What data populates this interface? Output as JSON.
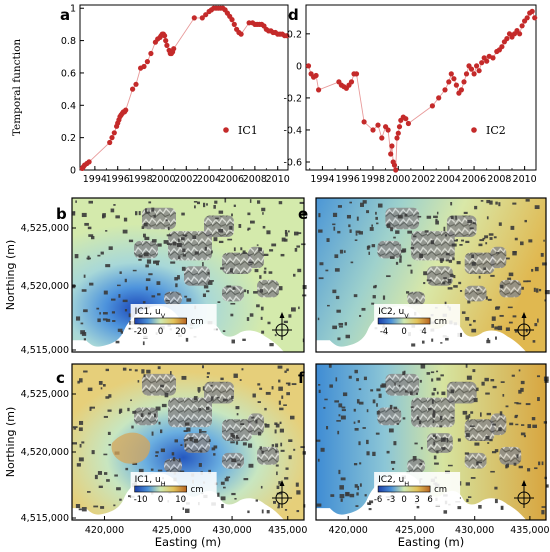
{
  "chart_data": [
    {
      "type": "scatter",
      "panel": "a",
      "ylabel": "Temporal function",
      "legend": {
        "label": "IC1",
        "placement": "bottom-right"
      },
      "xlim": [
        1992.7,
        2010.9
      ],
      "ylim": [
        0,
        1.02
      ],
      "xticks": [
        "1994",
        "1996",
        "1998",
        "2000",
        "2002",
        "2004",
        "2006",
        "2008",
        "2010"
      ],
      "yticks": [
        "0",
        "0.2",
        "0.4",
        "0.6",
        "0.8",
        "1"
      ],
      "series": [
        {
          "x": [
            1992.9,
            1993.0,
            1993.1,
            1993.3,
            1993.5,
            1995.3,
            1995.5,
            1995.7,
            1995.9,
            1996.0,
            1996.1,
            1996.2,
            1996.3,
            1996.4,
            1996.5,
            1996.6,
            1996.7,
            1997.3,
            1997.6,
            1998.0,
            1998.3,
            1998.6,
            1998.9,
            1999.3,
            1999.5,
            1999.7,
            1999.8,
            1999.9,
            2000.0,
            2000.1,
            2000.2,
            2000.3,
            2000.5,
            2000.6,
            2000.7,
            2000.8,
            2000.9,
            2002.7,
            2003.4,
            2003.7,
            2004.0,
            2004.2,
            2004.4,
            2004.6,
            2004.8,
            2005.0,
            2005.2,
            2005.4,
            2005.6,
            2005.8,
            2006.0,
            2006.2,
            2006.4,
            2006.6,
            2006.8,
            2007.5,
            2007.8,
            2008.0,
            2008.2,
            2008.4,
            2008.6,
            2008.8,
            2009.0,
            2009.2,
            2009.4,
            2009.6,
            2009.8,
            2010.0,
            2010.2,
            2010.4,
            2010.6,
            2010.8
          ],
          "y": [
            0.01,
            0.02,
            0.03,
            0.04,
            0.05,
            0.17,
            0.2,
            0.23,
            0.27,
            0.29,
            0.31,
            0.33,
            0.34,
            0.35,
            0.36,
            0.36,
            0.37,
            0.5,
            0.53,
            0.63,
            0.64,
            0.67,
            0.72,
            0.79,
            0.81,
            0.82,
            0.83,
            0.84,
            0.84,
            0.83,
            0.8,
            0.77,
            0.74,
            0.72,
            0.72,
            0.73,
            0.75,
            0.94,
            0.94,
            0.96,
            0.98,
            0.99,
            1.0,
            1.0,
            1.0,
            1.0,
            1.0,
            0.99,
            0.97,
            0.95,
            0.93,
            0.9,
            0.87,
            0.85,
            0.84,
            0.91,
            0.91,
            0.9,
            0.9,
            0.9,
            0.9,
            0.89,
            0.87,
            0.86,
            0.86,
            0.85,
            0.85,
            0.84,
            0.84,
            0.84,
            0.83,
            0.83
          ]
        }
      ]
    },
    {
      "type": "scatter",
      "panel": "d",
      "legend": {
        "label": "IC2",
        "placement": "bottom-right"
      },
      "xlim": [
        1992.7,
        2010.9
      ],
      "ylim": [
        -0.65,
        0.38
      ],
      "xticks": [
        "1994",
        "1996",
        "1998",
        "2000",
        "2002",
        "2004",
        "2006",
        "2008",
        "2010"
      ],
      "yticks": [
        "-0.6",
        "-0.4",
        "-0.2",
        "0",
        "0.2"
      ],
      "series": [
        {
          "x": [
            1992.9,
            1993.1,
            1993.3,
            1993.5,
            1993.7,
            1995.3,
            1995.5,
            1995.7,
            1995.9,
            1996.1,
            1996.3,
            1996.5,
            1996.7,
            1997.3,
            1998.0,
            1998.4,
            1998.7,
            1999.0,
            1999.2,
            1999.4,
            1999.5,
            1999.6,
            1999.7,
            1999.8,
            1999.9,
            2000.0,
            2000.1,
            2000.2,
            2000.4,
            2000.6,
            2000.8,
            2002.7,
            2003.2,
            2003.7,
            2004.0,
            2004.2,
            2004.4,
            2004.6,
            2004.8,
            2005.0,
            2005.2,
            2005.4,
            2005.6,
            2005.8,
            2006.0,
            2006.2,
            2006.4,
            2006.6,
            2006.8,
            2007.0,
            2007.2,
            2007.5,
            2007.8,
            2008.0,
            2008.2,
            2008.4,
            2008.6,
            2008.8,
            2009.0,
            2009.2,
            2009.4,
            2009.6,
            2009.8,
            2010.0,
            2010.2,
            2010.4,
            2010.6,
            2010.8
          ],
          "y": [
            0.0,
            -0.05,
            -0.07,
            -0.06,
            -0.15,
            -0.1,
            -0.12,
            -0.13,
            -0.14,
            -0.12,
            -0.1,
            -0.05,
            -0.05,
            -0.35,
            -0.4,
            -0.37,
            -0.45,
            -0.38,
            -0.4,
            -0.55,
            -0.5,
            -0.6,
            -0.62,
            -0.65,
            -0.45,
            -0.42,
            -0.38,
            -0.34,
            -0.32,
            -0.33,
            -0.36,
            -0.25,
            -0.2,
            -0.15,
            -0.1,
            -0.05,
            -0.08,
            -0.12,
            -0.17,
            -0.15,
            -0.1,
            -0.05,
            0.0,
            -0.02,
            -0.05,
            0.0,
            -0.03,
            0.02,
            0.05,
            0.03,
            0.06,
            0.05,
            0.09,
            0.1,
            0.12,
            0.15,
            0.17,
            0.2,
            0.18,
            0.2,
            0.22,
            0.2,
            0.25,
            0.28,
            0.3,
            0.33,
            0.34,
            0.3
          ]
        }
      ]
    },
    {
      "type": "heatmap",
      "panel": "b",
      "ylabel": "Northing (m)",
      "yticks": [
        "4,525,000",
        "4,520,000",
        "4,515,000"
      ],
      "colorbar": {
        "title": "IC1, uV",
        "unit": "cm",
        "ticks": [
          "-20",
          "0",
          "20"
        ],
        "colors": [
          "#1b3ea8",
          "#4a90d8",
          "#cfe9b0",
          "#e3c35a",
          "#b86522"
        ]
      }
    },
    {
      "type": "heatmap",
      "panel": "e",
      "colorbar": {
        "title": "IC2, uV",
        "unit": "cm",
        "ticks": [
          "-4",
          "0",
          "4"
        ],
        "colors": [
          "#1b3ea8",
          "#4a90d8",
          "#cfe9b0",
          "#e3c35a",
          "#b86522"
        ]
      }
    },
    {
      "type": "heatmap",
      "panel": "c",
      "ylabel": "Northing (m)",
      "xlabel": "Easting (m)",
      "yticks": [
        "4,525,000",
        "4,520,000",
        "4,515,000"
      ],
      "xticks": [
        "420,000",
        "425,000",
        "430,000",
        "435,000"
      ],
      "colorbar": {
        "title": "IC1, uH",
        "unit": "cm",
        "ticks": [
          "-10",
          "0",
          "10"
        ],
        "colors": [
          "#1b3ea8",
          "#4a90d8",
          "#cfe9b0",
          "#e3c35a",
          "#b86522"
        ]
      }
    },
    {
      "type": "heatmap",
      "panel": "f",
      "xlabel": "Easting (m)",
      "xticks": [
        "420,000",
        "425,000",
        "430,000",
        "435,000"
      ],
      "colorbar": {
        "title": "IC2, uH",
        "unit": "cm",
        "ticks": [
          "-6",
          "-3",
          "0",
          "3",
          "6"
        ],
        "colors": [
          "#1b3ea8",
          "#4a90d8",
          "#cfe9b0",
          "#e3c35a",
          "#b86522"
        ]
      }
    }
  ],
  "panel_letters": {
    "a": "a",
    "b": "b",
    "c": "c",
    "d": "d",
    "e": "e",
    "f": "f"
  },
  "colors": {
    "marker": "#c42a2a",
    "line": "#e89a9a"
  }
}
